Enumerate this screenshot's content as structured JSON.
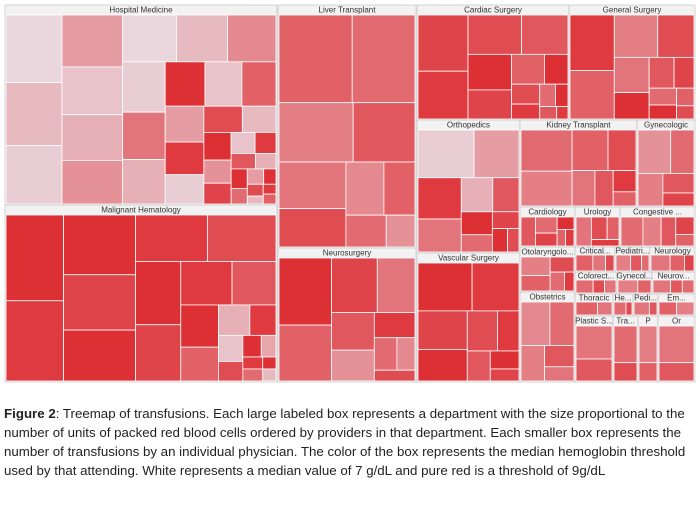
{
  "chart_data": {
    "type": "treemap",
    "color_domain": [
      7,
      9
    ],
    "colors": [
      "#ebebf2",
      "#dc262b"
    ],
    "departments": [
      {
        "name": "Hospital Medicine",
        "units": [
          60,
          56,
          52,
          50,
          46,
          44,
          42,
          40,
          38,
          36,
          34,
          32,
          30,
          28,
          26,
          24,
          22,
          20,
          18,
          16,
          14,
          12,
          10,
          9,
          8,
          7,
          6,
          5,
          5,
          4,
          4,
          3,
          3,
          2,
          2,
          2
        ],
        "thresholds": [
          7.2,
          7.5,
          7.3,
          7.8,
          7.4,
          7.6,
          7.9,
          7.2,
          7.5,
          8.0,
          7.3,
          8.2,
          7.6,
          8.9,
          7.4,
          8.4,
          7.8,
          8.8,
          7.3,
          8.6,
          7.5,
          8.9,
          7.9,
          8.7,
          7.4,
          8.8,
          8.5,
          7.6,
          8.9,
          8.3,
          7.8,
          8.9,
          8.6,
          7.5,
          8.8,
          8.4
        ]
      },
      {
        "name": "Malignant Hematology",
        "units": [
          62,
          58,
          54,
          50,
          46,
          42,
          40,
          36,
          32,
          28,
          24,
          20,
          16,
          12,
          10,
          8,
          6,
          5,
          4,
          3,
          3,
          2,
          2
        ],
        "thresholds": [
          8.9,
          8.8,
          8.9,
          8.7,
          8.9,
          8.8,
          8.6,
          8.9,
          8.7,
          8.8,
          8.5,
          8.9,
          8.4,
          7.6,
          8.8,
          7.4,
          8.6,
          8.9,
          7.7,
          8.8,
          8.3,
          8.9,
          7.5
        ]
      },
      {
        "name": "Liver Transplant",
        "units": [
          70,
          60,
          48,
          40,
          34,
          28,
          22,
          18,
          14,
          10
        ],
        "thresholds": [
          8.4,
          8.3,
          8.1,
          8.5,
          8.2,
          8.6,
          8.0,
          8.4,
          8.3,
          7.9
        ]
      },
      {
        "name": "Neurosurgery",
        "units": [
          48,
          40,
          34,
          28,
          22,
          18,
          14,
          10,
          8,
          6
        ],
        "thresholds": [
          8.9,
          8.4,
          8.7,
          8.2,
          8.5,
          7.9,
          8.8,
          8.3,
          8.0,
          8.6
        ]
      },
      {
        "name": "Cardiac Surgery",
        "units": [
          40,
          34,
          30,
          26,
          22,
          18,
          14,
          10,
          8,
          6,
          5,
          4,
          3,
          2
        ],
        "thresholds": [
          8.7,
          8.8,
          8.6,
          8.5,
          8.9,
          8.7,
          8.4,
          8.9,
          8.6,
          8.8,
          8.3,
          8.9,
          8.5,
          8.8
        ]
      },
      {
        "name": "General Surgery",
        "units": [
          32,
          28,
          24,
          20,
          16,
          12,
          10,
          8,
          6,
          5,
          4,
          3
        ],
        "thresholds": [
          8.8,
          8.4,
          8.1,
          8.6,
          8.2,
          8.9,
          8.5,
          8.7,
          8.3,
          8.9,
          8.4,
          8.6
        ]
      },
      {
        "name": "Orthopedics",
        "units": [
          30,
          24,
          20,
          16,
          12,
          10,
          8,
          6,
          5,
          4,
          3
        ],
        "thresholds": [
          7.3,
          7.8,
          8.8,
          8.2,
          7.6,
          8.5,
          8.9,
          8.3,
          8.7,
          8.9,
          8.6
        ]
      },
      {
        "name": "Kidney Transplant",
        "units": [
          26,
          22,
          18,
          14,
          10,
          8,
          6,
          4
        ],
        "thresholds": [
          8.3,
          8.1,
          8.4,
          8.6,
          8.2,
          8.5,
          8.8,
          8.4
        ]
      },
      {
        "name": "Gynecologic",
        "units": [
          14,
          10,
          8,
          6,
          4
        ],
        "thresholds": [
          7.9,
          8.3,
          8.1,
          8.5,
          8.7
        ]
      },
      {
        "name": "Vascular Surgery",
        "units": [
          30,
          26,
          22,
          18,
          14,
          10,
          8,
          6,
          4
        ],
        "thresholds": [
          8.9,
          8.8,
          8.7,
          8.9,
          8.6,
          8.8,
          8.5,
          8.9,
          8.7
        ]
      },
      {
        "name": "Cardiology",
        "units": [
          6,
          5,
          4,
          3,
          2,
          2
        ],
        "thresholds": [
          8.5,
          8.3,
          8.7,
          8.9,
          8.4,
          8.8
        ]
      },
      {
        "name": "Urology",
        "units": [
          5,
          4,
          3,
          2
        ],
        "thresholds": [
          8.2,
          8.6,
          8.4,
          8.8
        ]
      },
      {
        "name": "Congestive ...",
        "units": [
          6,
          5,
          4,
          3,
          2
        ],
        "thresholds": [
          8.3,
          8.1,
          8.5,
          8.7,
          8.4
        ]
      },
      {
        "name": "Otolaryngolo...",
        "units": [
          6,
          5,
          4,
          3,
          2
        ],
        "thresholds": [
          8.1,
          8.4,
          8.6,
          8.3,
          8.8
        ]
      },
      {
        "name": "Critical...",
        "units": [
          4,
          3,
          2
        ],
        "thresholds": [
          8.4,
          8.2,
          8.6
        ]
      },
      {
        "name": "Pediatri...",
        "units": [
          4,
          3,
          2
        ],
        "thresholds": [
          8.1,
          8.5,
          8.3
        ]
      },
      {
        "name": "Neurology",
        "units": [
          4,
          3,
          2
        ],
        "thresholds": [
          8.2,
          8.4,
          8.7
        ]
      },
      {
        "name": "Obstetrics",
        "units": [
          6,
          5,
          4,
          3,
          2
        ],
        "thresholds": [
          8.0,
          8.3,
          8.1,
          8.5,
          8.2
        ]
      },
      {
        "name": "Colorect...",
        "units": [
          3,
          2,
          2
        ],
        "thresholds": [
          8.3,
          8.6,
          8.2
        ]
      },
      {
        "name": "Gynecol...",
        "units": [
          3,
          2
        ],
        "thresholds": [
          8.1,
          8.4
        ]
      },
      {
        "name": "Neurov...",
        "units": [
          3,
          2,
          2
        ],
        "thresholds": [
          8.2,
          8.5,
          8.3
        ]
      },
      {
        "name": "Thoracic",
        "units": [
          3,
          2
        ],
        "thresholds": [
          8.4,
          8.2
        ]
      },
      {
        "name": "He...",
        "units": [
          2,
          1
        ],
        "thresholds": [
          8.3,
          8.6
        ]
      },
      {
        "name": "Pedi...",
        "units": [
          2,
          1
        ],
        "thresholds": [
          8.2,
          8.5
        ]
      },
      {
        "name": "Em...",
        "units": [
          2,
          2
        ],
        "thresholds": [
          8.4,
          8.1
        ]
      },
      {
        "name": "Plastic S...",
        "units": [
          3,
          2
        ],
        "thresholds": [
          8.2,
          8.5
        ]
      },
      {
        "name": "Tra...",
        "units": [
          2,
          1
        ],
        "thresholds": [
          8.3,
          8.6
        ]
      },
      {
        "name": "P",
        "units": [
          2,
          1
        ],
        "thresholds": [
          8.1,
          8.4
        ]
      },
      {
        "name": "Or",
        "units": [
          2,
          1
        ],
        "thresholds": [
          8.2,
          8.5
        ]
      }
    ]
  },
  "caption": {
    "label": "Figure 2",
    "text": ": Treemap of transfusions. Each large labeled box represents a department with the size proportional to the number of units of packed red blood cells ordered by providers in that department. Each smaller box represents the number of transfusions by an individual physician. The color of the box represents the median hemoglobin threshold used by that attending. White represents a median value of 7 g/dL and pure red is a threshold of 9g/dL"
  }
}
